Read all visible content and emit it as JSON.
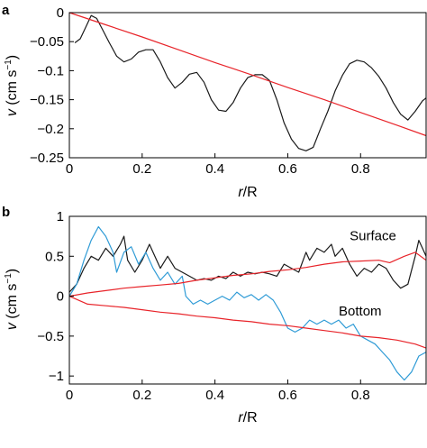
{
  "chart_data": [
    {
      "panel": "a",
      "type": "line",
      "xlabel_var": "r",
      "xlabel_rest": "/R",
      "ylabel_var": "v",
      "ylabel_rest": " (cm s",
      "ylabel_exp": "−1",
      "ylabel_close": ")",
      "xlim": [
        0,
        0.98
      ],
      "ylim": [
        -0.25,
        0
      ],
      "xticks": [
        "0",
        "0.2",
        "0.4",
        "0.6",
        "0.8"
      ],
      "xtick_values": [
        0,
        0.2,
        0.4,
        0.6,
        0.8
      ],
      "yticks": [
        "0",
        "−0.05",
        "−0.1",
        "−0.15",
        "−0.2",
        "−0.25"
      ],
      "ytick_values": [
        0,
        -0.05,
        -0.1,
        -0.15,
        -0.2,
        -0.25
      ],
      "series": [
        {
          "color": "#1a1a1a",
          "points": [
            [
              0.015,
              -0.052
            ],
            [
              0.03,
              -0.045
            ],
            [
              0.045,
              -0.025
            ],
            [
              0.06,
              -0.005
            ],
            [
              0.075,
              -0.01
            ],
            [
              0.09,
              -0.028
            ],
            [
              0.11,
              -0.052
            ],
            [
              0.13,
              -0.075
            ],
            [
              0.15,
              -0.085
            ],
            [
              0.17,
              -0.08
            ],
            [
              0.19,
              -0.068
            ],
            [
              0.21,
              -0.064
            ],
            [
              0.23,
              -0.064
            ],
            [
              0.25,
              -0.085
            ],
            [
              0.27,
              -0.112
            ],
            [
              0.29,
              -0.13
            ],
            [
              0.31,
              -0.12
            ],
            [
              0.33,
              -0.106
            ],
            [
              0.35,
              -0.103
            ],
            [
              0.37,
              -0.12
            ],
            [
              0.39,
              -0.15
            ],
            [
              0.41,
              -0.168
            ],
            [
              0.43,
              -0.17
            ],
            [
              0.45,
              -0.155
            ],
            [
              0.47,
              -0.13
            ],
            [
              0.49,
              -0.112
            ],
            [
              0.51,
              -0.107
            ],
            [
              0.53,
              -0.107
            ],
            [
              0.55,
              -0.117
            ],
            [
              0.57,
              -0.15
            ],
            [
              0.59,
              -0.19
            ],
            [
              0.61,
              -0.218
            ],
            [
              0.63,
              -0.234
            ],
            [
              0.65,
              -0.238
            ],
            [
              0.67,
              -0.232
            ],
            [
              0.69,
              -0.2
            ],
            [
              0.71,
              -0.17
            ],
            [
              0.73,
              -0.135
            ],
            [
              0.75,
              -0.108
            ],
            [
              0.77,
              -0.088
            ],
            [
              0.79,
              -0.082
            ],
            [
              0.81,
              -0.085
            ],
            [
              0.83,
              -0.095
            ],
            [
              0.85,
              -0.11
            ],
            [
              0.87,
              -0.13
            ],
            [
              0.89,
              -0.155
            ],
            [
              0.91,
              -0.175
            ],
            [
              0.93,
              -0.185
            ],
            [
              0.95,
              -0.17
            ],
            [
              0.97,
              -0.152
            ],
            [
              0.98,
              -0.147
            ]
          ]
        },
        {
          "color": "#e8242a",
          "points": [
            [
              0.0,
              0.0
            ],
            [
              0.1,
              -0.021
            ],
            [
              0.2,
              -0.042
            ],
            [
              0.3,
              -0.064
            ],
            [
              0.4,
              -0.086
            ],
            [
              0.5,
              -0.107
            ],
            [
              0.6,
              -0.129
            ],
            [
              0.7,
              -0.15
            ],
            [
              0.8,
              -0.172
            ],
            [
              0.9,
              -0.194
            ],
            [
              0.98,
              -0.212
            ]
          ]
        }
      ]
    },
    {
      "panel": "b",
      "type": "line",
      "xlabel_var": "r",
      "xlabel_rest": "/R",
      "ylabel_var": "v",
      "ylabel_rest": " (cm s",
      "ylabel_exp": "−1",
      "ylabel_close": ")",
      "xlim": [
        0,
        0.98
      ],
      "ylim": [
        -1.1,
        1
      ],
      "xticks": [
        "0",
        "0.2",
        "0.4",
        "0.6",
        "0.8"
      ],
      "xtick_values": [
        0,
        0.2,
        0.4,
        0.6,
        0.8
      ],
      "yticks": [
        "1",
        "0.5",
        "0",
        "−0.5",
        "−1"
      ],
      "ytick_values": [
        1,
        0.5,
        0,
        -0.5,
        -1
      ],
      "annotations": [
        {
          "text": "Surface",
          "x": 0.77,
          "y": 0.7
        },
        {
          "text": "Bottom",
          "x": 0.74,
          "y": -0.24
        }
      ],
      "series": [
        {
          "color": "#1a1a1a",
          "points": [
            [
              0.0,
              0.05
            ],
            [
              0.02,
              0.15
            ],
            [
              0.04,
              0.35
            ],
            [
              0.06,
              0.5
            ],
            [
              0.08,
              0.45
            ],
            [
              0.1,
              0.6
            ],
            [
              0.12,
              0.5
            ],
            [
              0.14,
              0.65
            ],
            [
              0.15,
              0.75
            ],
            [
              0.16,
              0.45
            ],
            [
              0.18,
              0.3
            ],
            [
              0.2,
              0.45
            ],
            [
              0.22,
              0.65
            ],
            [
              0.23,
              0.55
            ],
            [
              0.25,
              0.35
            ],
            [
              0.27,
              0.5
            ],
            [
              0.29,
              0.35
            ],
            [
              0.31,
              0.3
            ],
            [
              0.33,
              0.25
            ],
            [
              0.35,
              0.2
            ],
            [
              0.37,
              0.22
            ],
            [
              0.39,
              0.2
            ],
            [
              0.41,
              0.25
            ],
            [
              0.43,
              0.22
            ],
            [
              0.45,
              0.3
            ],
            [
              0.47,
              0.25
            ],
            [
              0.49,
              0.3
            ],
            [
              0.51,
              0.28
            ],
            [
              0.53,
              0.3
            ],
            [
              0.55,
              0.28
            ],
            [
              0.57,
              0.25
            ],
            [
              0.59,
              0.4
            ],
            [
              0.61,
              0.35
            ],
            [
              0.63,
              0.3
            ],
            [
              0.65,
              0.55
            ],
            [
              0.66,
              0.45
            ],
            [
              0.68,
              0.6
            ],
            [
              0.7,
              0.55
            ],
            [
              0.72,
              0.65
            ],
            [
              0.73,
              0.5
            ],
            [
              0.75,
              0.6
            ],
            [
              0.77,
              0.4
            ],
            [
              0.79,
              0.25
            ],
            [
              0.81,
              0.35
            ],
            [
              0.83,
              0.3
            ],
            [
              0.85,
              0.4
            ],
            [
              0.87,
              0.35
            ],
            [
              0.89,
              0.2
            ],
            [
              0.91,
              0.1
            ],
            [
              0.93,
              0.15
            ],
            [
              0.95,
              0.5
            ],
            [
              0.96,
              0.7
            ],
            [
              0.97,
              0.6
            ],
            [
              0.98,
              0.5
            ]
          ]
        },
        {
          "color": "#2f9bd6",
          "points": [
            [
              0.0,
              0.0
            ],
            [
              0.02,
              0.15
            ],
            [
              0.04,
              0.45
            ],
            [
              0.06,
              0.7
            ],
            [
              0.08,
              0.87
            ],
            [
              0.1,
              0.75
            ],
            [
              0.12,
              0.55
            ],
            [
              0.13,
              0.3
            ],
            [
              0.15,
              0.55
            ],
            [
              0.17,
              0.62
            ],
            [
              0.19,
              0.4
            ],
            [
              0.21,
              0.55
            ],
            [
              0.23,
              0.35
            ],
            [
              0.25,
              0.2
            ],
            [
              0.27,
              0.3
            ],
            [
              0.29,
              0.15
            ],
            [
              0.31,
              0.25
            ],
            [
              0.32,
              0.0
            ],
            [
              0.34,
              -0.1
            ],
            [
              0.36,
              -0.05
            ],
            [
              0.38,
              -0.1
            ],
            [
              0.4,
              -0.05
            ],
            [
              0.42,
              0.0
            ],
            [
              0.44,
              -0.05
            ],
            [
              0.46,
              0.05
            ],
            [
              0.48,
              -0.02
            ],
            [
              0.5,
              0.02
            ],
            [
              0.52,
              -0.05
            ],
            [
              0.54,
              0.02
            ],
            [
              0.56,
              -0.05
            ],
            [
              0.58,
              -0.2
            ],
            [
              0.6,
              -0.4
            ],
            [
              0.62,
              -0.45
            ],
            [
              0.64,
              -0.4
            ],
            [
              0.66,
              -0.3
            ],
            [
              0.68,
              -0.35
            ],
            [
              0.7,
              -0.3
            ],
            [
              0.72,
              -0.35
            ],
            [
              0.74,
              -0.3
            ],
            [
              0.76,
              -0.4
            ],
            [
              0.78,
              -0.35
            ],
            [
              0.8,
              -0.5
            ],
            [
              0.82,
              -0.55
            ],
            [
              0.84,
              -0.6
            ],
            [
              0.86,
              -0.7
            ],
            [
              0.88,
              -0.8
            ],
            [
              0.9,
              -0.95
            ],
            [
              0.92,
              -1.05
            ],
            [
              0.94,
              -0.95
            ],
            [
              0.96,
              -0.75
            ],
            [
              0.98,
              -0.7
            ]
          ]
        },
        {
          "color": "#e8242a",
          "points": [
            [
              0.0,
              0.0
            ],
            [
              0.05,
              0.04
            ],
            [
              0.1,
              0.07
            ],
            [
              0.15,
              0.1
            ],
            [
              0.2,
              0.12
            ],
            [
              0.25,
              0.14
            ],
            [
              0.3,
              0.16
            ],
            [
              0.35,
              0.2
            ],
            [
              0.4,
              0.23
            ],
            [
              0.45,
              0.26
            ],
            [
              0.5,
              0.28
            ],
            [
              0.55,
              0.31
            ],
            [
              0.6,
              0.33
            ],
            [
              0.65,
              0.36
            ],
            [
              0.7,
              0.4
            ],
            [
              0.75,
              0.43
            ],
            [
              0.8,
              0.44
            ],
            [
              0.85,
              0.45
            ],
            [
              0.88,
              0.42
            ],
            [
              0.92,
              0.5
            ],
            [
              0.95,
              0.55
            ],
            [
              0.98,
              0.45
            ]
          ]
        },
        {
          "color": "#e8242a",
          "points": [
            [
              0.0,
              0.0
            ],
            [
              0.05,
              -0.1
            ],
            [
              0.1,
              -0.12
            ],
            [
              0.15,
              -0.14
            ],
            [
              0.2,
              -0.17
            ],
            [
              0.25,
              -0.2
            ],
            [
              0.3,
              -0.22
            ],
            [
              0.35,
              -0.25
            ],
            [
              0.4,
              -0.27
            ],
            [
              0.45,
              -0.3
            ],
            [
              0.5,
              -0.32
            ],
            [
              0.55,
              -0.35
            ],
            [
              0.6,
              -0.37
            ],
            [
              0.65,
              -0.4
            ],
            [
              0.7,
              -0.43
            ],
            [
              0.75,
              -0.46
            ],
            [
              0.8,
              -0.5
            ],
            [
              0.85,
              -0.52
            ],
            [
              0.9,
              -0.55
            ],
            [
              0.95,
              -0.6
            ],
            [
              0.98,
              -0.65
            ]
          ]
        }
      ]
    }
  ]
}
